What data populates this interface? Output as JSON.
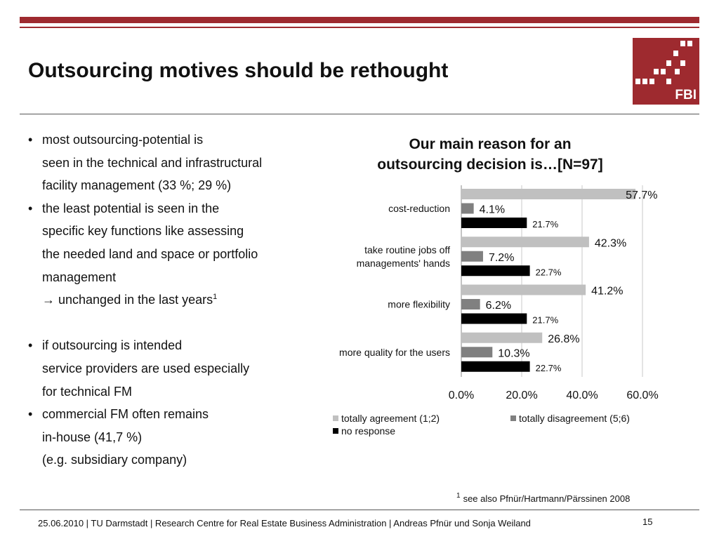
{
  "slide": {
    "title": "Outsourcing motives should be rethought",
    "logo_text": "FBI",
    "footnote_marker": "1",
    "footnote": "see also Pfnür/Hartmann/Pärssinen 2008",
    "footer": "25.06.2010  | TU Darmstadt | Research Centre for Real Estate Business Administration |  Andreas Pfnür und Sonja Weiland",
    "page_number": "15",
    "accent_color": "#9e2a2f"
  },
  "bullets": [
    {
      "text": "most outsourcing-potential is",
      "bullet": true
    },
    {
      "text": "seen in the technical and infrastructural",
      "bullet": false
    },
    {
      "text": "facility management (33 %; 29 %)",
      "bullet": false
    },
    {
      "text": "the least potential is seen in the",
      "bullet": true
    },
    {
      "text": "specific key functions like assessing",
      "bullet": false
    },
    {
      "text": "the needed land and space or portfolio",
      "bullet": false
    },
    {
      "text": "management",
      "bullet": false
    },
    {
      "text": "→ unchanged in the last years",
      "bullet": false,
      "sup": "1"
    },
    {
      "text": "if outsourcing is intended",
      "bullet": true,
      "gap_before": true
    },
    {
      "text": "service providers are used especially",
      "bullet": false
    },
    {
      "text": "for technical FM",
      "bullet": false
    },
    {
      "text": "commercial FM often remains",
      "bullet": true
    },
    {
      "text": "in-house (41,7 %)",
      "bullet": false
    },
    {
      "text": "(e.g. subsidiary company)",
      "bullet": false
    }
  ],
  "chart_data": {
    "type": "bar",
    "orientation": "horizontal",
    "title": "Our main reason for an outsourcing decision is…[N=97]",
    "title_lines": [
      "Our main reason for an",
      "outsourcing decision is…[N=97]"
    ],
    "categories": [
      "cost-reduction",
      "take routine jobs off managements' hands",
      "more flexibility",
      "more quality for the users"
    ],
    "category_lines": [
      [
        "cost-reduction"
      ],
      [
        "take routine jobs off",
        "managements' hands"
      ],
      [
        "more flexibility"
      ],
      [
        "more quality for the users"
      ]
    ],
    "series": [
      {
        "name": "totally agreement (1;2)",
        "color": "#c0c0c0",
        "values": [
          57.7,
          42.3,
          41.2,
          26.8
        ],
        "labels": [
          "57.7%",
          "42.3%",
          "41.2%",
          "26.8%"
        ]
      },
      {
        "name": "totally disagreement (5;6)",
        "color": "#808080",
        "values": [
          4.1,
          7.2,
          6.2,
          10.3
        ],
        "labels": [
          "4.1%",
          "7.2%",
          "6.2%",
          "10.3%"
        ]
      },
      {
        "name": "no response",
        "color": "#000000",
        "values": [
          21.7,
          22.7,
          21.7,
          22.7
        ],
        "labels": [
          "21.7%",
          "22.7%",
          "21.7%",
          "22.7%"
        ]
      }
    ],
    "xlim": [
      0,
      60
    ],
    "xticks": [
      0,
      20,
      40,
      60
    ],
    "xtick_labels": [
      "0.0%",
      "20.0%",
      "40.0%",
      "60.0%"
    ],
    "grid": true,
    "legend_position": "bottom"
  }
}
